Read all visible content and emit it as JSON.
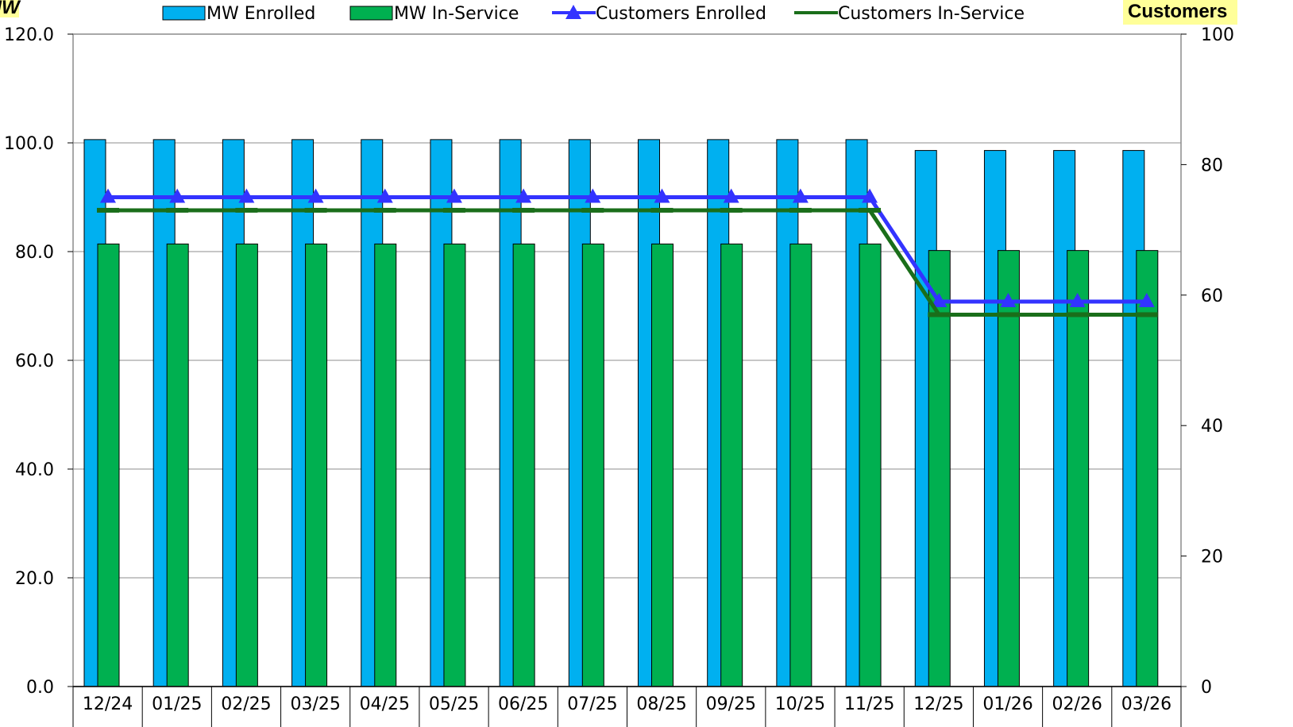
{
  "chart_data": {
    "type": "bar",
    "categories": [
      "12/24",
      "01/25",
      "02/25",
      "03/25",
      "04/25",
      "05/25",
      "06/25",
      "07/25",
      "08/25",
      "09/25",
      "10/25",
      "11/25",
      "12/25",
      "01/26",
      "02/26",
      "03/26"
    ],
    "series": [
      {
        "name": "MW Enrolled",
        "type": "bar",
        "axis": "left",
        "color": "#00b0f0",
        "values": [
          100.6,
          100.6,
          100.6,
          100.6,
          100.6,
          100.6,
          100.6,
          100.6,
          100.6,
          100.6,
          100.6,
          100.6,
          98.6,
          98.6,
          98.6,
          98.6
        ]
      },
      {
        "name": "MW In-Service",
        "type": "bar",
        "axis": "left",
        "color": "#00b050",
        "values": [
          81.4,
          81.4,
          81.4,
          81.4,
          81.4,
          81.4,
          81.4,
          81.4,
          81.4,
          81.4,
          81.4,
          81.4,
          80.2,
          80.2,
          80.2,
          80.2
        ]
      },
      {
        "name": "Customers Enrolled",
        "type": "line",
        "axis": "right",
        "color": "#3333ff",
        "marker": "triangle",
        "values": [
          75,
          75,
          75,
          75,
          75,
          75,
          75,
          75,
          75,
          75,
          75,
          75,
          59,
          59,
          59,
          59
        ]
      },
      {
        "name": "Customers In-Service",
        "type": "line",
        "axis": "right",
        "color": "#1a6e1a",
        "marker": "dash",
        "values": [
          73,
          73,
          73,
          73,
          73,
          73,
          73,
          73,
          73,
          73,
          73,
          73,
          57,
          57,
          57,
          57
        ]
      }
    ],
    "y_left": {
      "label": "MW",
      "ylim": [
        0,
        120
      ],
      "ticks": [
        "0.0",
        "20.0",
        "40.0",
        "60.0",
        "80.0",
        "100.0",
        "120.0"
      ]
    },
    "y_right": {
      "label": "Customers",
      "ylim": [
        0,
        100
      ],
      "ticks": [
        "0",
        "20",
        "40",
        "60",
        "80",
        "100"
      ]
    },
    "grid": true,
    "legend_position": "top"
  }
}
